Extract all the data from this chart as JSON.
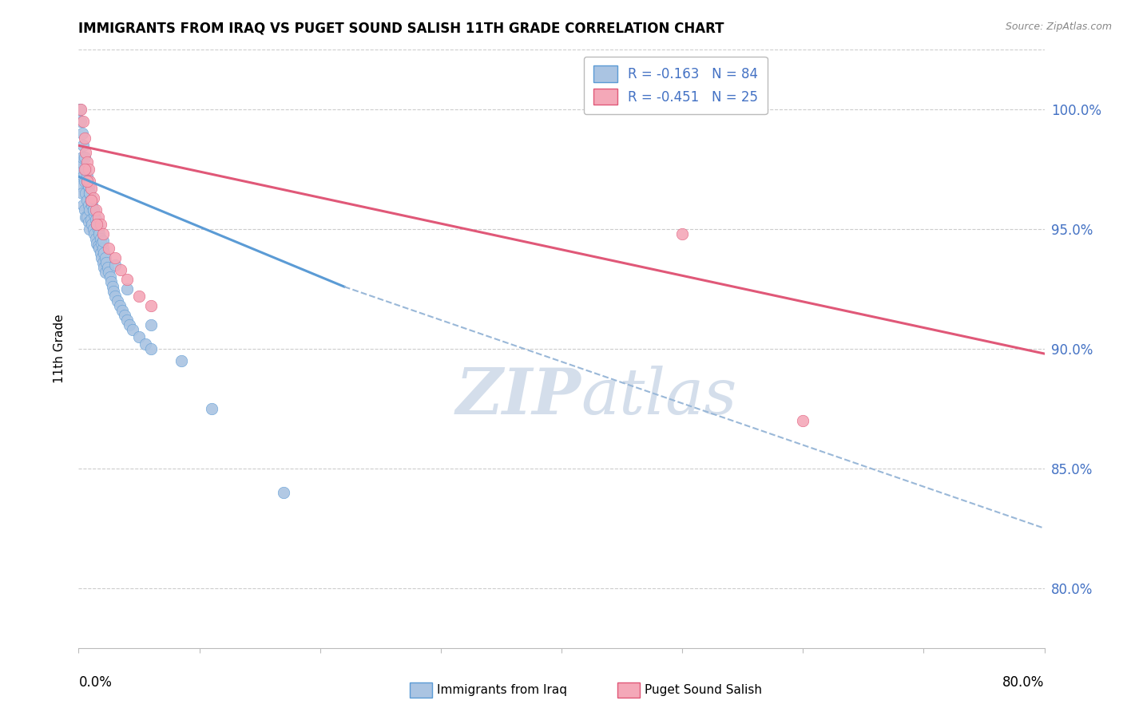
{
  "title": "IMMIGRANTS FROM IRAQ VS PUGET SOUND SALISH 11TH GRADE CORRELATION CHART",
  "source": "Source: ZipAtlas.com",
  "ylabel": "11th Grade",
  "ytick_labels": [
    "100.0%",
    "95.0%",
    "90.0%",
    "85.0%",
    "80.0%"
  ],
  "ytick_values": [
    1.0,
    0.95,
    0.9,
    0.85,
    0.8
  ],
  "xmin": 0.0,
  "xmax": 0.8,
  "ymin": 0.775,
  "ymax": 1.025,
  "legend_iraq_R": "R = -0.163",
  "legend_iraq_N": "N = 84",
  "legend_salish_R": "R = -0.451",
  "legend_salish_N": "N = 25",
  "legend_iraq_label": "Immigrants from Iraq",
  "legend_salish_label": "Puget Sound Salish",
  "color_iraq_fill": "#aac4e2",
  "color_salish_fill": "#f4a8b8",
  "color_iraq_line": "#5b9bd5",
  "color_salish_line": "#e05878",
  "color_dashed_line": "#9ab8d8",
  "color_right_axis": "#4472c4",
  "watermark_color": "#cdd9e8",
  "iraq_scatter_x": [
    0.001,
    0.002,
    0.002,
    0.003,
    0.003,
    0.004,
    0.004,
    0.005,
    0.005,
    0.006,
    0.006,
    0.006,
    0.007,
    0.007,
    0.007,
    0.008,
    0.008,
    0.008,
    0.009,
    0.009,
    0.009,
    0.01,
    0.01,
    0.011,
    0.011,
    0.012,
    0.012,
    0.013,
    0.013,
    0.014,
    0.014,
    0.015,
    0.015,
    0.016,
    0.016,
    0.017,
    0.017,
    0.018,
    0.018,
    0.019,
    0.019,
    0.02,
    0.02,
    0.021,
    0.021,
    0.022,
    0.022,
    0.023,
    0.024,
    0.025,
    0.026,
    0.027,
    0.028,
    0.029,
    0.03,
    0.032,
    0.034,
    0.036,
    0.038,
    0.04,
    0.042,
    0.045,
    0.05,
    0.055,
    0.06,
    0.001,
    0.002,
    0.003,
    0.004,
    0.005,
    0.006,
    0.007,
    0.008,
    0.009,
    0.01,
    0.012,
    0.015,
    0.02,
    0.03,
    0.04,
    0.06,
    0.085,
    0.11,
    0.17
  ],
  "iraq_scatter_y": [
    0.975,
    0.978,
    0.968,
    0.98,
    0.965,
    0.972,
    0.96,
    0.97,
    0.958,
    0.975,
    0.965,
    0.955,
    0.97,
    0.962,
    0.955,
    0.968,
    0.96,
    0.953,
    0.965,
    0.958,
    0.95,
    0.962,
    0.954,
    0.96,
    0.952,
    0.958,
    0.95,
    0.956,
    0.948,
    0.954,
    0.946,
    0.952,
    0.944,
    0.95,
    0.943,
    0.948,
    0.942,
    0.946,
    0.94,
    0.944,
    0.938,
    0.942,
    0.936,
    0.94,
    0.934,
    0.938,
    0.932,
    0.936,
    0.934,
    0.932,
    0.93,
    0.928,
    0.926,
    0.924,
    0.922,
    0.92,
    0.918,
    0.916,
    0.914,
    0.912,
    0.91,
    0.908,
    0.905,
    0.902,
    0.9,
    1.0,
    0.995,
    0.99,
    0.985,
    0.98,
    0.975,
    0.972,
    0.968,
    0.965,
    0.962,
    0.958,
    0.952,
    0.945,
    0.935,
    0.925,
    0.91,
    0.895,
    0.875,
    0.84
  ],
  "salish_scatter_x": [
    0.002,
    0.004,
    0.005,
    0.006,
    0.007,
    0.008,
    0.009,
    0.01,
    0.012,
    0.014,
    0.016,
    0.018,
    0.02,
    0.025,
    0.03,
    0.035,
    0.04,
    0.05,
    0.06,
    0.005,
    0.007,
    0.01,
    0.015,
    0.5,
    0.6
  ],
  "salish_scatter_y": [
    1.0,
    0.995,
    0.988,
    0.982,
    0.978,
    0.975,
    0.97,
    0.967,
    0.963,
    0.958,
    0.955,
    0.952,
    0.948,
    0.942,
    0.938,
    0.933,
    0.929,
    0.922,
    0.918,
    0.975,
    0.97,
    0.962,
    0.952,
    0.948,
    0.87
  ],
  "iraq_trend_x": [
    0.0,
    0.22
  ],
  "iraq_trend_y": [
    0.972,
    0.926
  ],
  "salish_trend_x": [
    0.0,
    0.8
  ],
  "salish_trend_y": [
    0.985,
    0.898
  ],
  "dashed_trend_x": [
    0.22,
    0.8
  ],
  "dashed_trend_y": [
    0.926,
    0.825
  ]
}
